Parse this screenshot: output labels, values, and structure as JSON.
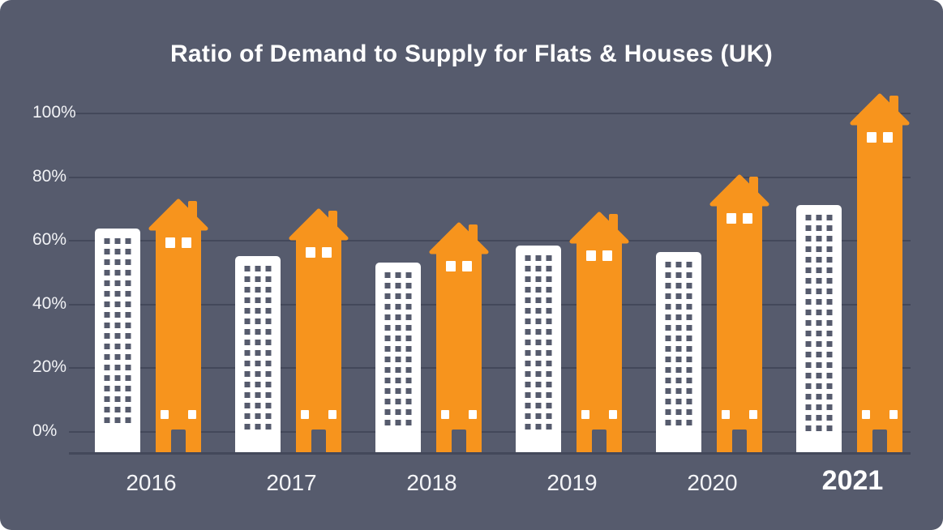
{
  "chart_data": {
    "type": "bar",
    "title": "Ratio of Demand to Supply for Flats & Houses (UK)",
    "categories": [
      "2016",
      "2017",
      "2018",
      "2019",
      "2020",
      "2021"
    ],
    "series": [
      {
        "name": "Flats",
        "pictogram": "flat-building",
        "color": "#ffffff",
        "values": [
          66,
          58,
          56,
          61,
          59,
          73
        ]
      },
      {
        "name": "Houses",
        "pictogram": "house",
        "color": "#f7941d",
        "values": [
          75,
          72,
          68,
          71,
          82,
          106
        ]
      }
    ],
    "xlabel": "",
    "ylabel": "",
    "ylim": [
      0,
      100
    ],
    "yticks": [
      0,
      20,
      40,
      60,
      80,
      100
    ],
    "ytick_labels": [
      "0%",
      "20%",
      "40%",
      "60%",
      "80%",
      "100%"
    ],
    "grid": true,
    "legend_position": "none",
    "emphasized_category": "2021"
  },
  "colors": {
    "background": "#565b6d",
    "grid": "#43485a",
    "flat": "#ffffff",
    "house": "#f7941d",
    "window_dark": "#565b6d",
    "text": "#ffffff"
  }
}
